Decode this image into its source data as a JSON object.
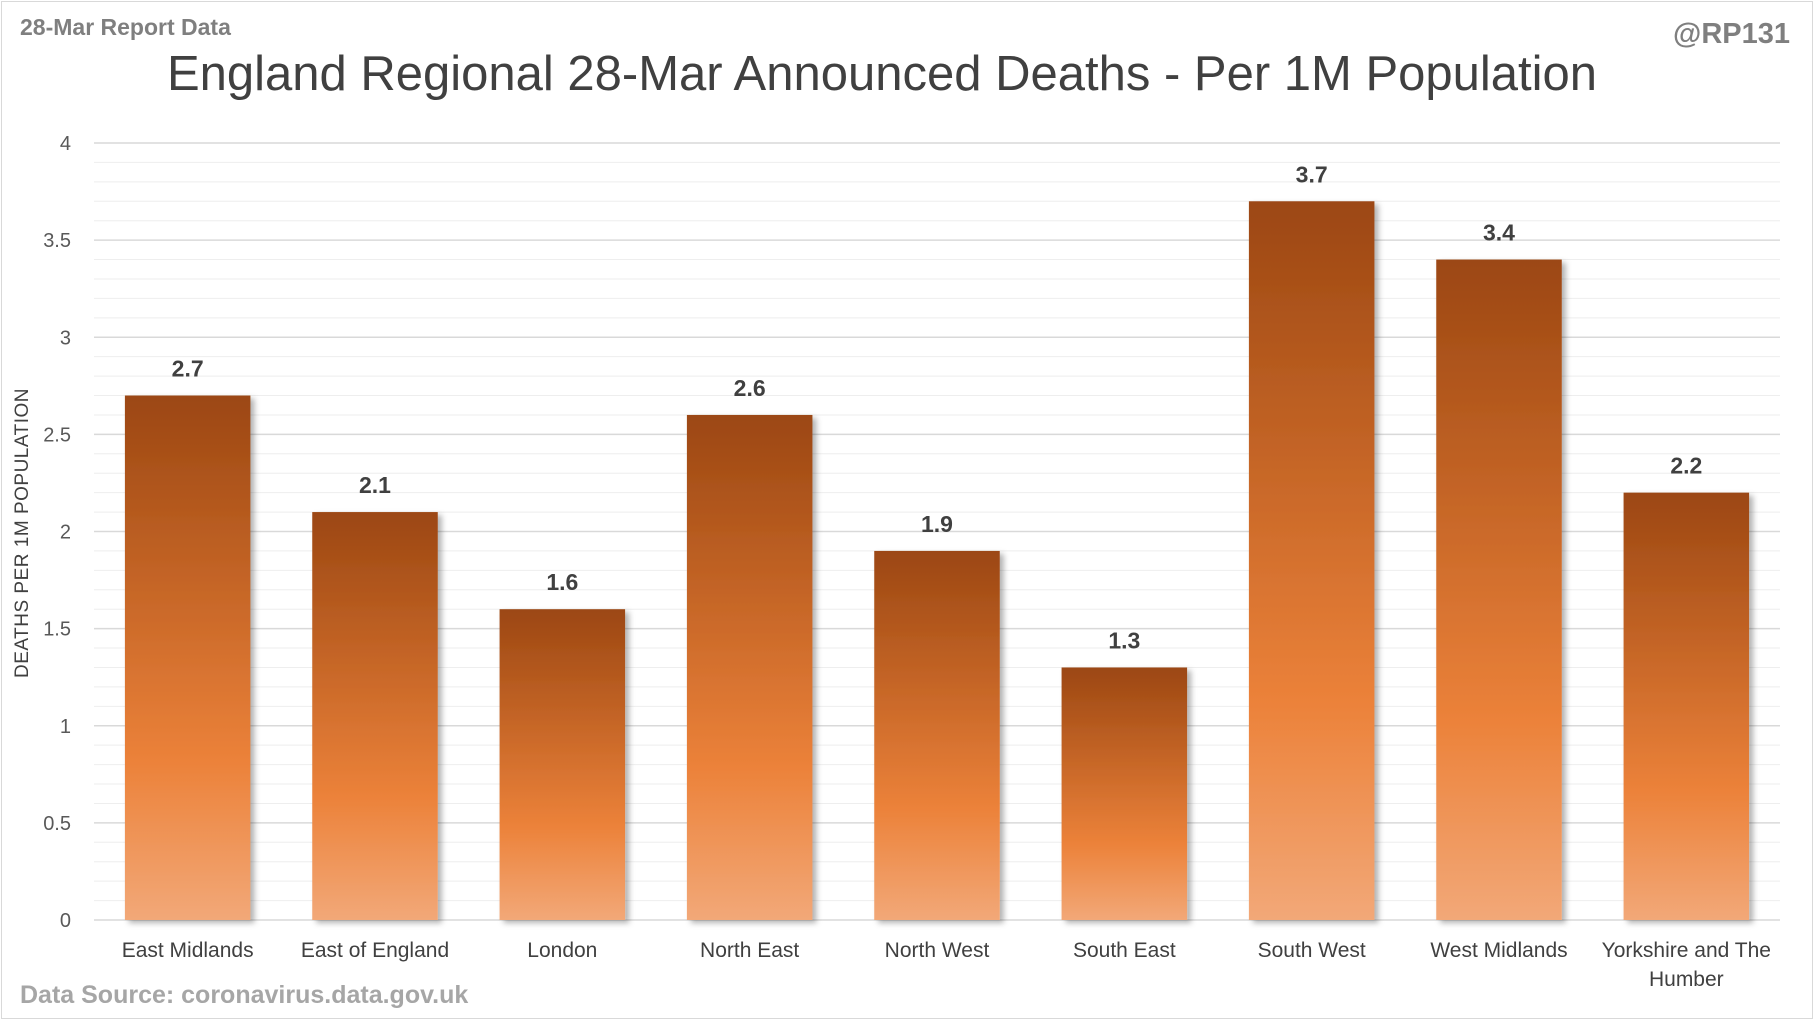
{
  "header": {
    "report_label": "28-Mar Report Data",
    "handle": "@RP131"
  },
  "footer": {
    "source": "Data Source: coronavirus.data.gov.uk"
  },
  "colors": {
    "bar_dark": "#9c4712",
    "bar_mid": "#ec823a",
    "bar_light": "#f2a878",
    "gridline": "#d9d9d9"
  },
  "chart_data": {
    "type": "bar",
    "title": "England Regional 28-Mar Announced Deaths - Per 1M Population",
    "xlabel": "",
    "ylabel": "DEATHS PER 1M POPULATION",
    "ylim": [
      0,
      4
    ],
    "yticks": [
      0,
      0.5,
      1,
      1.5,
      2,
      2.5,
      3,
      3.5,
      4
    ],
    "grid": true,
    "legend": "none",
    "categories": [
      [
        "East Midlands"
      ],
      [
        "East of England"
      ],
      [
        "London"
      ],
      [
        "North East"
      ],
      [
        "North West"
      ],
      [
        "South East"
      ],
      [
        "South West"
      ],
      [
        "West Midlands"
      ],
      [
        "Yorkshire and The",
        "Humber"
      ]
    ],
    "values": [
      2.7,
      2.1,
      1.6,
      2.6,
      1.9,
      1.3,
      3.7,
      3.4,
      2.2
    ],
    "data_labels": [
      "2.7",
      "2.1",
      "1.6",
      "2.6",
      "1.9",
      "1.3",
      "3.7",
      "3.4",
      "2.2"
    ]
  }
}
